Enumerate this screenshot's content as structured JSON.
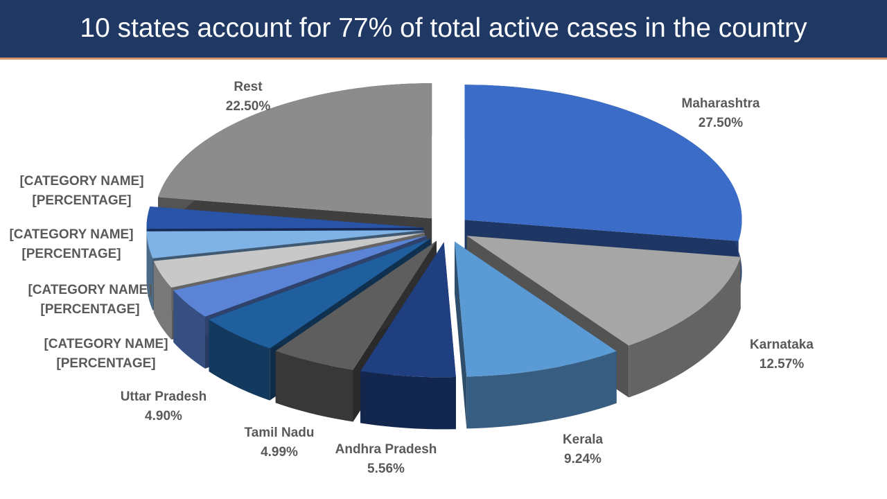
{
  "title": "10 states account for 77% of total active cases in the country",
  "chart_data": {
    "type": "pie",
    "style": "3d-exploded",
    "title": "10 states account for 77% of total active cases in the country",
    "slices": [
      {
        "name": "Maharashtra",
        "label": "27.50%",
        "value": 27.5,
        "color": "#3a6cc8"
      },
      {
        "name": "Karnataka",
        "label": "12.57%",
        "value": 12.57,
        "color": "#a6a6a6"
      },
      {
        "name": "Kerala",
        "label": "9.24%",
        "value": 9.24,
        "color": "#5b9bd5"
      },
      {
        "name": "Andhra Pradesh",
        "label": "5.56%",
        "value": 5.56,
        "color": "#203f80"
      },
      {
        "name": "Tamil Nadu",
        "label": "4.99%",
        "value": 4.99,
        "color": "#5e5e5e"
      },
      {
        "name": "Uttar Pradesh",
        "label": "4.90%",
        "value": 4.9,
        "color": "#1f5f9e"
      },
      {
        "name": "[CATEGORY NAME]",
        "label": "[PERCENTAGE]",
        "value": 3.6,
        "color": "#5b84d6"
      },
      {
        "name": "[CATEGORY NAME]",
        "label": "[PERCENTAGE]",
        "value": 3.3,
        "color": "#c8c8c8"
      },
      {
        "name": "[CATEGORY NAME]",
        "label": "[PERCENTAGE]",
        "value": 3.2,
        "color": "#7fb2e5"
      },
      {
        "name": "[CATEGORY NAME]",
        "label": "[PERCENTAGE]",
        "value": 2.64,
        "color": "#2a54a8"
      },
      {
        "name": "Rest",
        "label": "22.50%",
        "value": 22.5,
        "color": "#8c8c8c"
      }
    ],
    "legend": "none"
  }
}
